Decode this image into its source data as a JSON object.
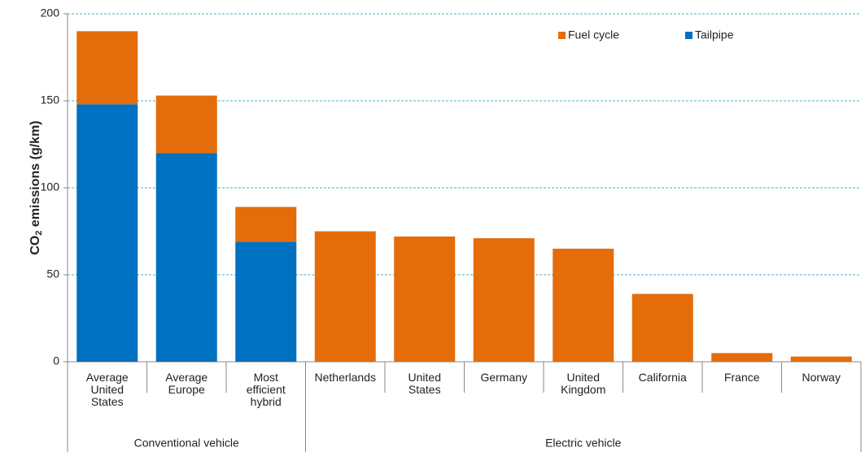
{
  "chart_data": {
    "type": "stacked_bar",
    "y_label": {
      "main": "CO",
      "sub": "2",
      "rest": " emissions (g/km)"
    },
    "groups": [
      {
        "name": "Conventional vehicle",
        "categories": [
          [
            "Average",
            "United",
            "States"
          ],
          [
            "Average",
            "Europe"
          ],
          [
            "Most",
            "efficient",
            "hybrid"
          ]
        ]
      },
      {
        "name": "Electric vehicle",
        "categories": [
          [
            "Netherlands"
          ],
          [
            "United",
            "States"
          ],
          [
            "Germany"
          ],
          [
            "United",
            "Kingdom"
          ],
          [
            "California"
          ],
          [
            "France"
          ],
          [
            "Norway"
          ]
        ]
      }
    ],
    "series": [
      {
        "name": "Tailpipe",
        "color": "#0070c0",
        "values": [
          148,
          120,
          69,
          0,
          0,
          0,
          0,
          0,
          0,
          0
        ]
      },
      {
        "name": "Fuel cycle",
        "color": "#e46c0a",
        "values": [
          42,
          33,
          20,
          75,
          72,
          71,
          65,
          39,
          5,
          3
        ]
      }
    ],
    "ylim": [
      0,
      200
    ],
    "yticks": [
      0,
      50,
      100,
      150,
      200
    ],
    "grid": true,
    "legend": "top-right"
  }
}
